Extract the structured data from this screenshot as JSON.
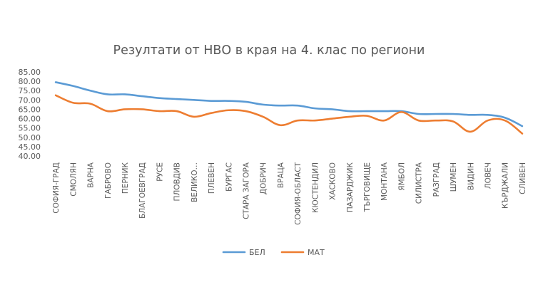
{
  "chart_data": {
    "type": "line",
    "title": "Резултати от НВО в края на 4. клас по региони",
    "xlabel": "",
    "ylabel": "",
    "ylim": [
      40,
      85
    ],
    "yticks": [
      "40.00",
      "45.00",
      "50.00",
      "55.00",
      "60.00",
      "65.00",
      "70.00",
      "75.00",
      "80.00",
      "85.00"
    ],
    "grid": false,
    "legend": "bottom",
    "categories": [
      "СОФИЯ-ГРАД",
      "СМОЛЯН",
      "ВАРНА",
      "ГАБРОВО",
      "ПЕРНИК",
      "БЛАГОЕВГРАД",
      "РУСЕ",
      "ПЛОВДИВ",
      "ВЕЛИКО…",
      "ПЛЕВЕН",
      "БУРГАС",
      "СТАРА ЗАГОРА",
      "ДОБРИЧ",
      "ВРАЦА",
      "СОФИЯ-ОБЛАСТ",
      "КЮСТЕНДИЛ",
      "ХАСКОВО",
      "ПАЗАРДЖИК",
      "ТЪРГОВИЩЕ",
      "МОНТАНА",
      "ЯМБОЛ",
      "СИЛИСТРА",
      "РАЗГРАД",
      "ШУМЕН",
      "ВИДИН",
      "ЛОВЕЧ",
      "КЪРДЖАЛИ",
      "СЛИВЕН"
    ],
    "series": [
      {
        "name": "БЕЛ",
        "color": "#5B9BD5",
        "values": [
          79.5,
          77.5,
          75.0,
          73.0,
          73.0,
          72.0,
          71.0,
          70.5,
          70.0,
          69.5,
          69.5,
          69.0,
          67.5,
          67.0,
          67.0,
          65.5,
          65.0,
          64.0,
          64.0,
          64.0,
          64.0,
          62.5,
          62.5,
          62.5,
          62.0,
          62.0,
          60.5,
          56.0
        ]
      },
      {
        "name": "МАТ",
        "color": "#ED7D31",
        "values": [
          72.5,
          68.5,
          68.0,
          64.0,
          65.0,
          65.0,
          64.0,
          64.0,
          61.0,
          63.0,
          64.5,
          64.0,
          61.0,
          56.5,
          59.0,
          59.0,
          60.0,
          61.0,
          61.5,
          59.0,
          63.5,
          59.0,
          59.0,
          58.5,
          53.0,
          59.0,
          59.0,
          52.0
        ]
      }
    ]
  }
}
